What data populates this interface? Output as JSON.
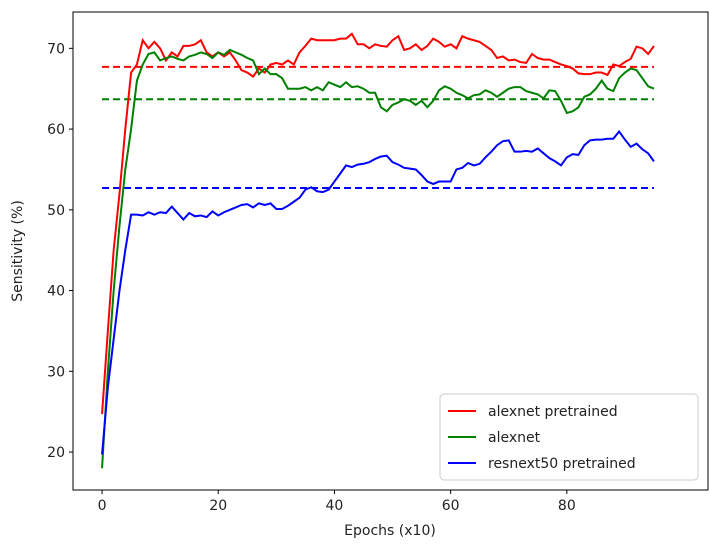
{
  "chart_data": {
    "type": "line",
    "x_label": "Epochs (x10)",
    "y_label": "Sensitivity (%)",
    "x": [
      0,
      1,
      2,
      3,
      4,
      5,
      6,
      7,
      8,
      9,
      10,
      11,
      12,
      13,
      14,
      15,
      16,
      17,
      18,
      19,
      20,
      21,
      22,
      23,
      24,
      25,
      26,
      27,
      28,
      29,
      30,
      31,
      32,
      33,
      34,
      35,
      36,
      37,
      38,
      39,
      40,
      41,
      42,
      43,
      44,
      45,
      46,
      47,
      48,
      49,
      50,
      51,
      52,
      53,
      54,
      55,
      56,
      57,
      58,
      59,
      60,
      61,
      62,
      63,
      64,
      65,
      66,
      67,
      68,
      69,
      70,
      71,
      72,
      73,
      74,
      75,
      76,
      77,
      78,
      79,
      80,
      81,
      82,
      83,
      84,
      85,
      86,
      87,
      88,
      89,
      90,
      91,
      92,
      93,
      94,
      95
    ],
    "series": [
      {
        "name": "alexnet pretrained",
        "color": "#ff0000",
        "values": [
          24.7,
          35,
          45,
          52,
          60,
          67,
          68,
          71,
          70,
          70.8,
          70,
          68.5,
          69.5,
          69,
          70.3,
          70.3,
          70.5,
          71,
          69.5,
          69,
          69.5,
          69,
          69.5,
          68.5,
          67.3,
          67,
          66.5,
          67.5,
          67,
          68,
          68.2,
          68,
          68.5,
          68,
          69.5,
          70.3,
          71.2,
          71,
          71,
          71,
          71,
          71.2,
          71.2,
          71.8,
          70.5,
          70.5,
          70,
          70.5,
          70.3,
          70.2,
          71,
          71.5,
          69.8,
          70,
          70.5,
          69.8,
          70.3,
          71.2,
          70.8,
          70.2,
          70.5,
          70,
          71.5,
          71.2,
          71,
          70.8,
          70.3,
          69.8,
          68.8,
          69,
          68.5,
          68.6,
          68.3,
          68.2,
          69.3,
          68.8,
          68.6,
          68.6,
          68.3,
          68,
          67.8,
          67.5,
          66.9,
          66.8,
          66.8,
          67,
          67,
          66.7,
          68,
          67.8,
          68.3,
          68.7,
          70.2,
          70,
          69.3,
          70.3
        ]
      },
      {
        "name": "alexnet",
        "color": "#008000",
        "values": [
          18,
          30,
          40,
          48,
          55,
          60,
          66,
          68,
          69.3,
          69.5,
          68.5,
          68.8,
          69,
          68.7,
          68.5,
          69,
          69.2,
          69.5,
          69.3,
          68.8,
          69.5,
          69.2,
          69.8,
          69.5,
          69.2,
          68.8,
          68.5,
          66.8,
          67.5,
          66.8,
          66.8,
          66.3,
          65,
          65,
          65,
          65.2,
          64.8,
          65.2,
          64.8,
          65.8,
          65.5,
          65.2,
          65.8,
          65.2,
          65.3,
          65,
          64.5,
          64.5,
          62.7,
          62.2,
          63,
          63.3,
          63.7,
          63.5,
          63,
          63.5,
          62.7,
          63.5,
          64.8,
          65.3,
          65,
          64.5,
          64.2,
          63.8,
          64.2,
          64.3,
          64.8,
          64.5,
          64,
          64.5,
          65,
          65.2,
          65.2,
          64.7,
          64.5,
          64.3,
          63.8,
          64.8,
          64.7,
          63.5,
          62,
          62.2,
          62.7,
          64,
          64.3,
          65,
          66,
          65,
          64.7,
          66.3,
          67,
          67.5,
          67.3,
          66.3,
          65.3,
          65
        ]
      },
      {
        "name": "resnext50 pretrained",
        "color": "#0000ff",
        "values": [
          19.7,
          28,
          34,
          40,
          45,
          49.4,
          49.4,
          49.3,
          49.7,
          49.4,
          49.7,
          49.6,
          50.4,
          49.6,
          48.8,
          49.6,
          49.2,
          49.3,
          49.1,
          49.8,
          49.3,
          49.7,
          50,
          50.3,
          50.6,
          50.7,
          50.3,
          50.8,
          50.6,
          50.8,
          50.1,
          50.1,
          50.5,
          51,
          51.5,
          52.5,
          52.8,
          52.3,
          52.2,
          52.5,
          53.5,
          54.5,
          55.5,
          55.3,
          55.6,
          55.7,
          55.9,
          56.3,
          56.6,
          56.7,
          55.9,
          55.6,
          55.2,
          55.1,
          55,
          54.3,
          53.5,
          53.2,
          53.5,
          53.5,
          53.5,
          55,
          55.2,
          55.8,
          55.5,
          55.7,
          56.5,
          57.2,
          58,
          58.5,
          58.6,
          57.2,
          57.2,
          57.3,
          57.2,
          57.6,
          57,
          56.4,
          56,
          55.5,
          56.5,
          56.9,
          56.8,
          58,
          58.6,
          58.7,
          58.7,
          58.8,
          58.8,
          59.7,
          58.7,
          57.8,
          58.2,
          57.5,
          57,
          56
        ]
      }
    ],
    "reference_lines": [
      {
        "y": 67.7,
        "x": [
          0,
          95
        ],
        "color": "#ff0000"
      },
      {
        "y": 63.7,
        "x": [
          0,
          95
        ],
        "color": "#008000"
      },
      {
        "y": 52.7,
        "x": [
          0,
          95
        ],
        "color": "#0000ff"
      }
    ],
    "xlim": [
      -5,
      104.3
    ],
    "ylim": [
      15.3,
      74.5
    ],
    "xticks": [
      0,
      20,
      40,
      60,
      80
    ],
    "yticks": [
      20,
      30,
      40,
      50,
      60,
      70
    ],
    "legend": "lower right"
  }
}
